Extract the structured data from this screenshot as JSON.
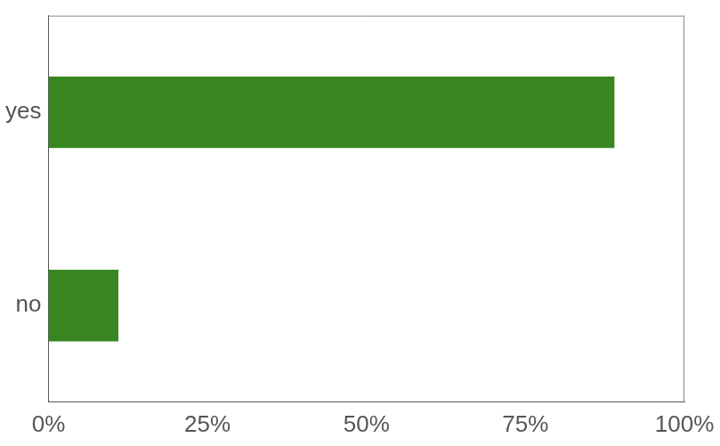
{
  "chart_data": {
    "type": "bar",
    "orientation": "horizontal",
    "categories": [
      "yes",
      "no"
    ],
    "values": [
      89,
      11
    ],
    "color": "#38861f",
    "xlim": [
      0,
      100
    ],
    "xticks": [
      {
        "value": 0,
        "label": "0%"
      },
      {
        "value": 25,
        "label": "25%"
      },
      {
        "value": 50,
        "label": "50%"
      },
      {
        "value": 75,
        "label": "75%"
      },
      {
        "value": 100,
        "label": "100%"
      }
    ],
    "grid": false
  }
}
